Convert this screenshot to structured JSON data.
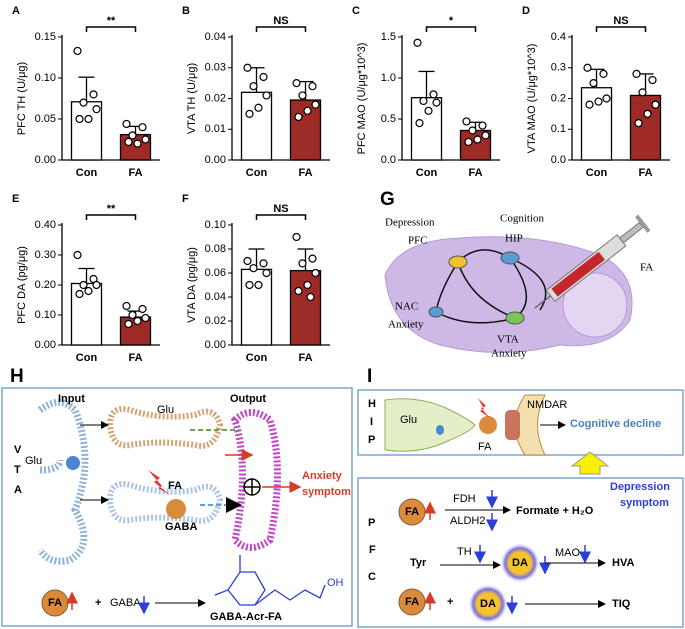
{
  "chart_data": [
    {
      "type": "bar",
      "panel": "A",
      "ylabel": "PFC TH (U/μg)",
      "categories": [
        "Con",
        "FA"
      ],
      "values": [
        0.071,
        0.031
      ],
      "errors": [
        0.03,
        0.01
      ],
      "points": [
        [
          0.133,
          0.08,
          0.07,
          0.062,
          0.05,
          0.05
        ],
        [
          0.044,
          0.04,
          0.03,
          0.025,
          0.02,
          0.022
        ]
      ],
      "colors": [
        "#ffffff",
        "#9e2a25"
      ],
      "ylim": [
        0,
        0.15
      ],
      "yticks": [
        {
          "value": 0,
          "label": "0.00"
        },
        {
          "value": 0.05,
          "label": "0.05"
        },
        {
          "value": 0.1,
          "label": "0.10"
        },
        {
          "value": 0.15,
          "label": "0.15"
        }
      ],
      "significance": "**"
    },
    {
      "type": "bar",
      "panel": "B",
      "ylabel": "VTA TH (U/μg)",
      "categories": [
        "Con",
        "FA"
      ],
      "values": [
        0.022,
        0.0195
      ],
      "errors": [
        0.008,
        0.006
      ],
      "points": [
        [
          0.03,
          0.027,
          0.024,
          0.021,
          0.017,
          0.015
        ],
        [
          0.025,
          0.024,
          0.021,
          0.018,
          0.016,
          0.014
        ]
      ],
      "colors": [
        "#ffffff",
        "#9e2a25"
      ],
      "ylim": [
        0,
        0.04
      ],
      "yticks": [
        {
          "value": 0,
          "label": "0.00"
        },
        0.01,
        0.02,
        0.03,
        0.04
      ],
      "significance": "NS"
    },
    {
      "type": "bar",
      "panel": "C",
      "ylabel": "PFC MAO (U/μg*10^3)",
      "categories": [
        "Con",
        "FA"
      ],
      "values": [
        0.76,
        0.36
      ],
      "errors": [
        0.32,
        0.1
      ],
      "points": [
        [
          1.43,
          0.8,
          0.72,
          0.7,
          0.6,
          0.45
        ],
        [
          0.47,
          0.42,
          0.36,
          0.3,
          0.25,
          0.22
        ]
      ],
      "colors": [
        "#ffffff",
        "#9e2a25"
      ],
      "ylim": [
        0,
        1.5
      ],
      "yticks": [
        {
          "value": 0,
          "label": "0.0"
        },
        0.5,
        {
          "value": 1,
          "label": "1.0"
        },
        1.5
      ],
      "significance": "*"
    },
    {
      "type": "bar",
      "panel": "D",
      "ylabel": "VTA MAO (U/μg*10^3)",
      "categories": [
        "Con",
        "FA"
      ],
      "values": [
        0.235,
        0.21
      ],
      "errors": [
        0.06,
        0.07
      ],
      "points": [
        [
          0.3,
          0.28,
          0.25,
          0.2,
          0.19,
          0.18
        ],
        [
          0.28,
          0.26,
          0.22,
          0.18,
          0.15,
          0.12
        ]
      ],
      "colors": [
        "#ffffff",
        "#9e2a25"
      ],
      "ylim": [
        0,
        0.4
      ],
      "yticks": [
        {
          "value": 0,
          "label": "0.0"
        },
        0.1,
        0.2,
        0.3,
        0.4
      ],
      "significance": "NS"
    },
    {
      "type": "bar",
      "panel": "E",
      "ylabel": "PFC DA (pg/μg)",
      "categories": [
        "Con",
        "FA"
      ],
      "values": [
        0.205,
        0.093
      ],
      "errors": [
        0.05,
        0.02
      ],
      "points": [
        [
          0.3,
          0.22,
          0.2,
          0.2,
          0.18,
          0.17
        ],
        [
          0.13,
          0.12,
          0.1,
          0.09,
          0.08,
          0.07
        ]
      ],
      "colors": [
        "#ffffff",
        "#9e2a25"
      ],
      "ylim": [
        0,
        0.4
      ],
      "yticks": [
        {
          "value": 0,
          "label": "0.00"
        },
        {
          "value": 0.1,
          "label": "0.10"
        },
        {
          "value": 0.2,
          "label": "0.20"
        },
        {
          "value": 0.3,
          "label": "0.30"
        },
        {
          "value": 0.4,
          "label": "0.40"
        }
      ],
      "significance": "**"
    },
    {
      "type": "bar",
      "panel": "F",
      "ylabel": "VTA DA (pg/μg)",
      "categories": [
        "Con",
        "FA"
      ],
      "values": [
        0.063,
        0.062
      ],
      "errors": [
        0.017,
        0.018
      ],
      "points": [
        [
          0.07,
          0.068,
          0.064,
          0.06,
          0.05,
          0.05
        ],
        [
          0.09,
          0.072,
          0.068,
          0.06,
          0.05,
          0.045,
          0.04
        ]
      ],
      "colors": [
        "#ffffff",
        "#9e2a25"
      ],
      "ylim": [
        0,
        0.1
      ],
      "yticks": [
        {
          "value": 0,
          "label": "0.00"
        },
        0.02,
        0.04,
        0.06,
        0.08,
        {
          "value": 0.1,
          "label": "0.10"
        }
      ],
      "significance": "NS"
    }
  ],
  "panel_g": {
    "letter": "G",
    "depression": "Depression",
    "pfc": "PFC",
    "cognition": "Cognition",
    "hip": "HIP",
    "nac": "NAC",
    "anxiety_nac": "Anxiety",
    "vta": "VTA",
    "anxiety_vta": "Anxiety",
    "fa": "FA"
  },
  "panel_h": {
    "letter": "H",
    "side": [
      "V",
      "T",
      "A"
    ],
    "input": "Input",
    "output": "Output",
    "glu_top": "Glu",
    "glu_left": "Glu",
    "fa": "FA",
    "gaba": "GABA",
    "anxiety": "Anxiety",
    "symptom": "symptom",
    "fa_bottom": "FA",
    "plus": "+",
    "gaba_bottom": "GABA",
    "product": "GABA-Acr-FA",
    "oh": "OH"
  },
  "panel_i": {
    "letter": "I",
    "hip_side": [
      "H",
      "I",
      "P"
    ],
    "glu": "Glu",
    "fa": "FA",
    "nmdar": "NMDAR",
    "cognitive": "Cognitive decline",
    "pfc_side": [
      "P",
      "F",
      "C"
    ],
    "depression": "Depression",
    "symptom": "symptom",
    "fa1": "FA",
    "fdh": "FDH",
    "aldh2": "ALDH2",
    "formate": "Formate + H₂O",
    "tyr": "Tyr",
    "th": "TH",
    "da1": "DA",
    "mao": "MAO",
    "hva": "HVA",
    "fa2": "FA",
    "plus": "+",
    "da2": "DA",
    "tiq": "TIQ"
  }
}
